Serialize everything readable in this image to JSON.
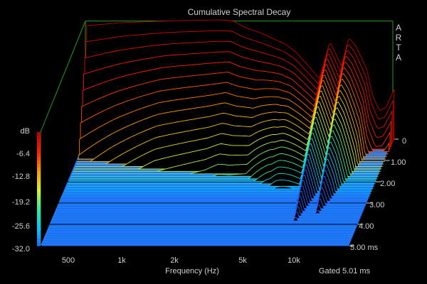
{
  "chart_data": {
    "type": "waterfall",
    "title": "Cumulative Spectral Decay",
    "brand": [
      "A",
      "R",
      "T",
      "A"
    ],
    "xlabel": "Frequency (Hz)",
    "zlabel": "dB",
    "gate_label": "Gated 5.01 ms",
    "x_scale": "log",
    "x_range_hz": [
      350,
      20000
    ],
    "x_ticks": [
      {
        "value": 500,
        "label": "500"
      },
      {
        "value": 1000,
        "label": "1k"
      },
      {
        "value": 2000,
        "label": "2k"
      },
      {
        "value": 5000,
        "label": "5k"
      },
      {
        "value": 10000,
        "label": "10k"
      }
    ],
    "z_range_db": [
      -32.0,
      0.0
    ],
    "z_ticks": [
      {
        "value": 0.0,
        "label": "dB"
      },
      {
        "value": -6.4,
        "label": "-6.4"
      },
      {
        "value": -12.8,
        "label": "-12.8"
      },
      {
        "value": -19.2,
        "label": "-19.2"
      },
      {
        "value": -25.6,
        "label": "-25.6"
      },
      {
        "value": -32.0,
        "label": "-32.0"
      }
    ],
    "t_range_ms": [
      0,
      5.0
    ],
    "t_ticks": [
      {
        "value": 0,
        "label": "0"
      },
      {
        "value": 1.0,
        "label": "1.00"
      },
      {
        "value": 2.0,
        "label": "2.00"
      },
      {
        "value": 3.0,
        "label": "3.00"
      },
      {
        "value": 4.0,
        "label": "4.00"
      },
      {
        "value": 5.0,
        "label": "5.00 ms"
      }
    ],
    "slice_count": 44,
    "colors": {
      "background": "#000000",
      "frame": "#1f9d1f",
      "floor": "#1e7ef0",
      "text": "#cfcfcf",
      "colormap": [
        "#2060ff",
        "#00c8ff",
        "#30e8a0",
        "#d8f030",
        "#ff9a00",
        "#ff2000",
        "#c00000"
      ]
    },
    "response_db": [
      {
        "hz": 350,
        "db": 0.0
      },
      {
        "hz": 420,
        "db": 0.3
      },
      {
        "hz": 550,
        "db": 0.8
      },
      {
        "hz": 700,
        "db": 1.0
      },
      {
        "hz": 900,
        "db": 1.2
      },
      {
        "hz": 1200,
        "db": 1.4
      },
      {
        "hz": 1600,
        "db": 1.5
      },
      {
        "hz": 2000,
        "db": 1.6
      },
      {
        "hz": 2400,
        "db": 1.3
      },
      {
        "hz": 2800,
        "db": -0.5
      },
      {
        "hz": 3500,
        "db": -2.2
      },
      {
        "hz": 4200,
        "db": -4.0
      },
      {
        "hz": 4800,
        "db": -5.3
      },
      {
        "hz": 5500,
        "db": -7.5
      },
      {
        "hz": 6500,
        "db": -11.5
      },
      {
        "hz": 7500,
        "db": -15.0
      },
      {
        "hz": 8000,
        "db": -10.0
      },
      {
        "hz": 8600,
        "db": -4.5
      },
      {
        "hz": 9200,
        "db": -7.5
      },
      {
        "hz": 10000,
        "db": -11.5
      },
      {
        "hz": 11000,
        "db": -3.5
      },
      {
        "hz": 12000,
        "db": -5.5
      },
      {
        "hz": 13000,
        "db": -9.0
      },
      {
        "hz": 14000,
        "db": -12.5
      },
      {
        "hz": 15000,
        "db": -19.5
      },
      {
        "hz": 16500,
        "db": -24.0
      },
      {
        "hz": 18000,
        "db": -23.0
      },
      {
        "hz": 20000,
        "db": -18.0
      }
    ],
    "decay_half_life_ms": [
      {
        "hz": 350,
        "ms": 0.6
      },
      {
        "hz": 500,
        "ms": 0.7
      },
      {
        "hz": 1000,
        "ms": 0.9
      },
      {
        "hz": 2000,
        "ms": 1.0
      },
      {
        "hz": 3500,
        "ms": 1.2
      },
      {
        "hz": 5000,
        "ms": 1.7
      },
      {
        "hz": 8600,
        "ms": 3.0
      },
      {
        "hz": 10000,
        "ms": 2.4
      },
      {
        "hz": 11000,
        "ms": 2.6
      },
      {
        "hz": 15000,
        "ms": 1.4
      },
      {
        "hz": 20000,
        "ms": 1.0
      }
    ]
  }
}
